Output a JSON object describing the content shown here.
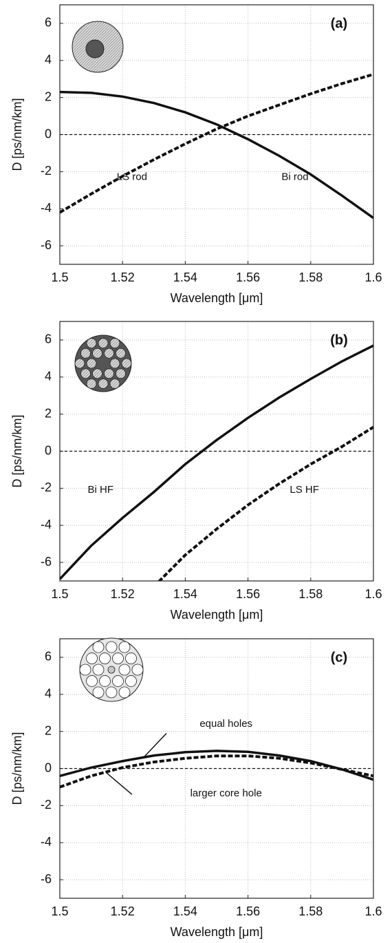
{
  "chart_data": [
    {
      "type": "line",
      "title": "(a)",
      "xlabel": "Wavelength [μm]",
      "ylabel": "D [ps/nm/km]",
      "x": [
        1.5,
        1.51,
        1.52,
        1.53,
        1.54,
        1.55,
        1.56,
        1.57,
        1.58,
        1.59,
        1.6
      ],
      "series": [
        {
          "name": "LS rod",
          "color": "#111111",
          "dashed": true,
          "values": [
            -4.2,
            -3.2,
            -2.25,
            -1.35,
            -0.5,
            0.3,
            1.0,
            1.6,
            2.2,
            2.75,
            3.25
          ]
        },
        {
          "name": "Bi rod",
          "color": "#111111",
          "dashed": false,
          "values": [
            2.3,
            2.25,
            2.05,
            1.7,
            1.2,
            0.55,
            -0.25,
            -1.15,
            -2.15,
            -3.3,
            -4.5
          ]
        }
      ],
      "reference_line": 0,
      "xlim": [
        1.5,
        1.6
      ],
      "xticks": [
        1.5,
        1.52,
        1.54,
        1.56,
        1.58,
        1.6
      ],
      "ylim": [
        -7,
        7
      ],
      "yticks": [
        -6,
        -4,
        -2,
        0,
        2,
        4,
        6
      ],
      "grid": true
    },
    {
      "type": "line",
      "title": "(b)",
      "xlabel": "Wavelength [μm]",
      "ylabel": "D [ps/nm/km]",
      "x": [
        1.5,
        1.51,
        1.52,
        1.53,
        1.54,
        1.55,
        1.56,
        1.57,
        1.58,
        1.59,
        1.6
      ],
      "series": [
        {
          "name": "Bi HF",
          "color": "#111111",
          "dashed": false,
          "values": [
            -6.9,
            -5.1,
            -3.6,
            -2.2,
            -0.7,
            0.6,
            1.8,
            2.9,
            3.9,
            4.85,
            5.7
          ]
        },
        {
          "name": "LS HF",
          "color": "#111111",
          "dashed": true,
          "values": [
            null,
            null,
            null,
            -7.3,
            -5.6,
            -4.2,
            -2.9,
            -1.75,
            -0.7,
            0.25,
            1.3
          ]
        }
      ],
      "reference_line": 0,
      "xlim": [
        1.5,
        1.6
      ],
      "xticks": [
        1.5,
        1.52,
        1.54,
        1.56,
        1.58,
        1.6
      ],
      "ylim": [
        -7,
        7
      ],
      "yticks": [
        -6,
        -4,
        -2,
        0,
        2,
        4,
        6
      ],
      "grid": true
    },
    {
      "type": "line",
      "title": "(c)",
      "xlabel": "Wavelength [μm]",
      "ylabel": "D [ps/nm/km]",
      "x": [
        1.5,
        1.51,
        1.52,
        1.53,
        1.54,
        1.55,
        1.56,
        1.57,
        1.58,
        1.59,
        1.6
      ],
      "series": [
        {
          "name": "equal holes",
          "color": "#111111",
          "dashed": false,
          "values": [
            -0.4,
            0.05,
            0.4,
            0.7,
            0.88,
            0.95,
            0.9,
            0.7,
            0.4,
            -0.05,
            -0.6
          ]
        },
        {
          "name": "larger core hole",
          "color": "#111111",
          "dashed": true,
          "values": [
            -1.0,
            -0.4,
            0.05,
            0.35,
            0.55,
            0.68,
            0.68,
            0.55,
            0.3,
            -0.05,
            -0.4
          ]
        }
      ],
      "reference_line": 0,
      "xlim": [
        1.5,
        1.6
      ],
      "xticks": [
        1.5,
        1.52,
        1.54,
        1.56,
        1.58,
        1.6
      ],
      "ylim": [
        -7,
        7
      ],
      "yticks": [
        -6,
        -4,
        -2,
        0,
        2,
        4,
        6
      ],
      "grid": true
    }
  ]
}
